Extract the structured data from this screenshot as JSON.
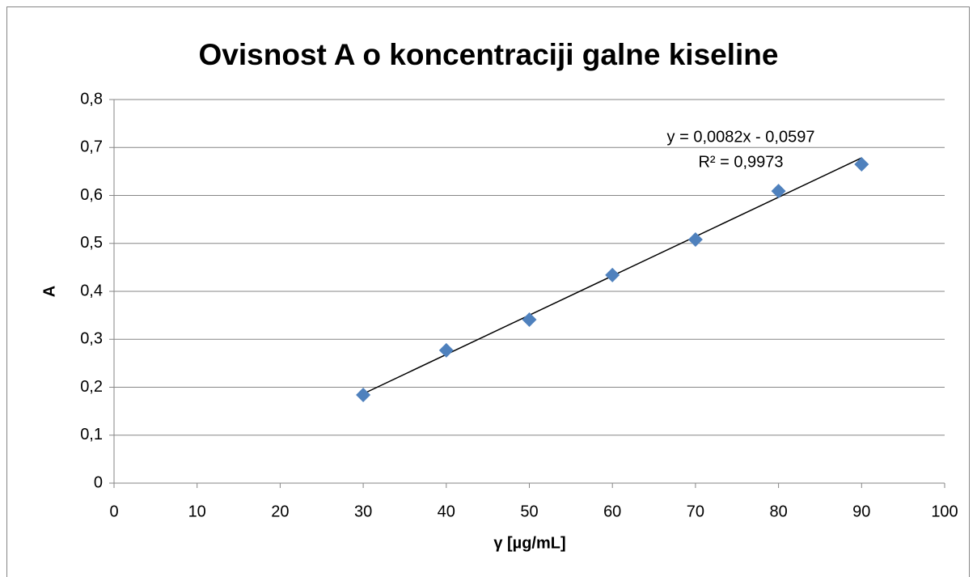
{
  "chart_data": {
    "type": "scatter",
    "title": "Ovisnost A o koncentraciji galne kiseline",
    "xlabel": "γ [µg/mL]",
    "ylabel": "A",
    "series": [
      {
        "name": "A",
        "color": "#4f81bd",
        "x": [
          30,
          40,
          50,
          60,
          70,
          80,
          90
        ],
        "values": [
          0.184,
          0.277,
          0.341,
          0.434,
          0.508,
          0.609,
          0.665
        ]
      }
    ],
    "trendline": {
      "slope": 0.0082,
      "intercept": -0.0597,
      "color": "#000000",
      "equation_label": "y = 0,0082x - 0,0597",
      "r2_label": "R² = 0,9973"
    },
    "xlim": [
      0,
      100
    ],
    "xticks": [
      0,
      10,
      20,
      30,
      40,
      50,
      60,
      70,
      80,
      90,
      100
    ],
    "ylim": [
      0,
      0.8
    ],
    "yticks": [
      0,
      {
        "value": 0.1,
        "label": "0,1"
      },
      {
        "value": 0.2,
        "label": "0,2"
      },
      {
        "value": 0.3,
        "label": "0,3"
      },
      {
        "value": 0.4,
        "label": "0,4"
      },
      {
        "value": 0.5,
        "label": "0,5"
      },
      {
        "value": 0.6,
        "label": "0,6"
      },
      {
        "value": 0.7,
        "label": "0,7"
      },
      {
        "value": 0.8,
        "label": "0,8"
      }
    ],
    "grid": true
  }
}
